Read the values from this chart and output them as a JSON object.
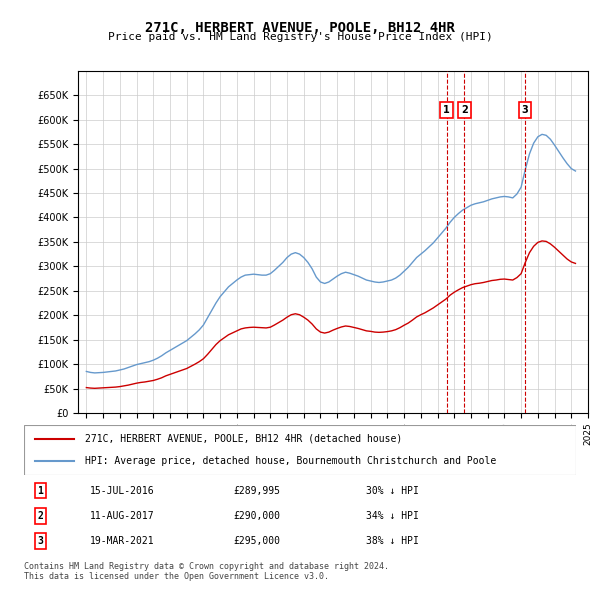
{
  "title": "271C, HERBERT AVENUE, POOLE, BH12 4HR",
  "subtitle": "Price paid vs. HM Land Registry's House Price Index (HPI)",
  "legend_line1": "271C, HERBERT AVENUE, POOLE, BH12 4HR (detached house)",
  "legend_line2": "HPI: Average price, detached house, Bournemouth Christchurch and Poole",
  "footnote1": "Contains HM Land Registry data © Crown copyright and database right 2024.",
  "footnote2": "This data is licensed under the Open Government Licence v3.0.",
  "sale_color": "#cc0000",
  "hpi_color": "#6699cc",
  "vline_color": "#cc0000",
  "ylim": [
    0,
    700000
  ],
  "yticks": [
    0,
    50000,
    100000,
    150000,
    200000,
    250000,
    300000,
    350000,
    400000,
    450000,
    500000,
    550000,
    600000,
    650000
  ],
  "sales": [
    {
      "label": "1",
      "date_num": 2016.54,
      "price": 289995,
      "text": "15-JUL-2016",
      "price_str": "£289,995",
      "hpi_pct": "30% ↓ HPI"
    },
    {
      "label": "2",
      "date_num": 2017.61,
      "price": 290000,
      "text": "11-AUG-2017",
      "price_str": "£290,000",
      "hpi_pct": "34% ↓ HPI"
    },
    {
      "label": "3",
      "date_num": 2021.22,
      "price": 295000,
      "text": "19-MAR-2021",
      "price_str": "£295,000",
      "hpi_pct": "38% ↓ HPI"
    }
  ],
  "hpi_data_x": [
    1995.0,
    1995.25,
    1995.5,
    1995.75,
    1996.0,
    1996.25,
    1996.5,
    1996.75,
    1997.0,
    1997.25,
    1997.5,
    1997.75,
    1998.0,
    1998.25,
    1998.5,
    1998.75,
    1999.0,
    1999.25,
    1999.5,
    1999.75,
    2000.0,
    2000.25,
    2000.5,
    2000.75,
    2001.0,
    2001.25,
    2001.5,
    2001.75,
    2002.0,
    2002.25,
    2002.5,
    2002.75,
    2003.0,
    2003.25,
    2003.5,
    2003.75,
    2004.0,
    2004.25,
    2004.5,
    2004.75,
    2005.0,
    2005.25,
    2005.5,
    2005.75,
    2006.0,
    2006.25,
    2006.5,
    2006.75,
    2007.0,
    2007.25,
    2007.5,
    2007.75,
    2008.0,
    2008.25,
    2008.5,
    2008.75,
    2009.0,
    2009.25,
    2009.5,
    2009.75,
    2010.0,
    2010.25,
    2010.5,
    2010.75,
    2011.0,
    2011.25,
    2011.5,
    2011.75,
    2012.0,
    2012.25,
    2012.5,
    2012.75,
    2013.0,
    2013.25,
    2013.5,
    2013.75,
    2014.0,
    2014.25,
    2014.5,
    2014.75,
    2015.0,
    2015.25,
    2015.5,
    2015.75,
    2016.0,
    2016.25,
    2016.5,
    2016.75,
    2017.0,
    2017.25,
    2017.5,
    2017.75,
    2018.0,
    2018.25,
    2018.5,
    2018.75,
    2019.0,
    2019.25,
    2019.5,
    2019.75,
    2020.0,
    2020.25,
    2020.5,
    2020.75,
    2021.0,
    2021.25,
    2021.5,
    2021.75,
    2022.0,
    2022.25,
    2022.5,
    2022.75,
    2023.0,
    2023.25,
    2023.5,
    2023.75,
    2024.0,
    2024.25
  ],
  "hpi_data_y": [
    85000,
    83000,
    82000,
    82500,
    83000,
    84000,
    85000,
    86000,
    88000,
    90000,
    93000,
    96000,
    99000,
    101000,
    103000,
    105000,
    108000,
    112000,
    117000,
    123000,
    128000,
    133000,
    138000,
    143000,
    148000,
    155000,
    162000,
    170000,
    180000,
    195000,
    210000,
    225000,
    238000,
    248000,
    258000,
    265000,
    272000,
    278000,
    282000,
    283000,
    284000,
    283000,
    282000,
    282000,
    285000,
    292000,
    300000,
    308000,
    318000,
    325000,
    328000,
    325000,
    318000,
    308000,
    295000,
    278000,
    268000,
    265000,
    268000,
    274000,
    280000,
    285000,
    288000,
    286000,
    283000,
    280000,
    276000,
    272000,
    270000,
    268000,
    267000,
    268000,
    270000,
    272000,
    276000,
    282000,
    290000,
    298000,
    308000,
    318000,
    325000,
    332000,
    340000,
    348000,
    358000,
    368000,
    378000,
    390000,
    400000,
    408000,
    415000,
    420000,
    425000,
    428000,
    430000,
    432000,
    435000,
    438000,
    440000,
    442000,
    443000,
    442000,
    440000,
    448000,
    462000,
    498000,
    530000,
    552000,
    565000,
    570000,
    568000,
    560000,
    548000,
    535000,
    522000,
    510000,
    500000,
    495000
  ],
  "sale_hpi_x": [
    1995.0,
    1995.25,
    1995.5,
    1995.75,
    1996.0,
    1996.25,
    1996.5,
    1996.75,
    1997.0,
    1997.25,
    1997.5,
    1997.75,
    1998.0,
    1998.25,
    1998.5,
    1998.75,
    1999.0,
    1999.25,
    1999.5,
    1999.75,
    2000.0,
    2000.25,
    2000.5,
    2000.75,
    2001.0,
    2001.25,
    2001.5,
    2001.75,
    2002.0,
    2002.25,
    2002.5,
    2002.75,
    2003.0,
    2003.25,
    2003.5,
    2003.75,
    2004.0,
    2004.25,
    2004.5,
    2004.75,
    2005.0,
    2005.25,
    2005.5,
    2005.75,
    2006.0,
    2006.25,
    2006.5,
    2006.75,
    2007.0,
    2007.25,
    2007.5,
    2007.75,
    2008.0,
    2008.25,
    2008.5,
    2008.75,
    2009.0,
    2009.25,
    2009.5,
    2009.75,
    2010.0,
    2010.25,
    2010.5,
    2010.75,
    2011.0,
    2011.25,
    2011.5,
    2011.75,
    2012.0,
    2012.25,
    2012.5,
    2012.75,
    2013.0,
    2013.25,
    2013.5,
    2013.75,
    2014.0,
    2014.25,
    2014.5,
    2014.75,
    2015.0,
    2015.25,
    2015.5,
    2015.75,
    2016.0,
    2016.25,
    2016.5,
    2016.75,
    2017.0,
    2017.25,
    2017.5,
    2017.75,
    2018.0,
    2018.25,
    2018.5,
    2018.75,
    2019.0,
    2019.25,
    2019.5,
    2019.75,
    2020.0,
    2020.25,
    2020.5,
    2020.75,
    2021.0,
    2021.25,
    2021.5,
    2021.75,
    2022.0,
    2022.25,
    2022.5,
    2022.75,
    2023.0,
    2023.25,
    2023.5,
    2023.75,
    2024.0,
    2024.25
  ],
  "sale_hpi_y": [
    52000,
    51000,
    50500,
    51000,
    51500,
    52000,
    52500,
    53000,
    54000,
    55500,
    57000,
    59000,
    61000,
    62500,
    63500,
    65000,
    66500,
    69000,
    72000,
    76000,
    79000,
    82000,
    85000,
    88000,
    91000,
    95500,
    100000,
    105000,
    111000,
    120000,
    130000,
    140000,
    148000,
    154000,
    160000,
    164000,
    168000,
    172000,
    174000,
    175000,
    175500,
    175000,
    174500,
    174000,
    175500,
    180000,
    185000,
    190000,
    196000,
    201000,
    203000,
    201000,
    196000,
    190000,
    182000,
    172000,
    165500,
    163500,
    165500,
    169500,
    173000,
    176000,
    178000,
    177000,
    175000,
    173000,
    170500,
    168000,
    167000,
    165500,
    165000,
    165500,
    166500,
    168000,
    170500,
    174500,
    179500,
    184000,
    190000,
    196500,
    201000,
    205000,
    210000,
    215000,
    221000,
    227000,
    233000,
    241000,
    247000,
    252000,
    256500,
    259500,
    262500,
    264500,
    265500,
    267000,
    269000,
    271000,
    272000,
    273500,
    274000,
    273000,
    272000,
    277000,
    285000,
    308000,
    328000,
    341000,
    349000,
    352000,
    351000,
    346000,
    339000,
    331000,
    323000,
    315000,
    309000,
    306000
  ]
}
